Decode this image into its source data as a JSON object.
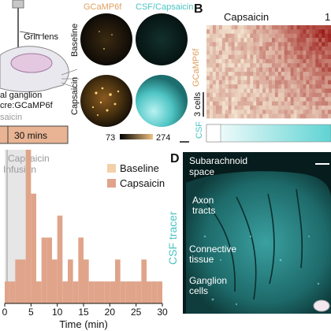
{
  "panels": {
    "A": {
      "letter": "",
      "implant_label": "Grin lens",
      "ganglion_label": "al ganglion",
      "cre_label": "cre:GCaMP6f",
      "timeline_label": "saicin",
      "duration_label": "30 mins",
      "column_gcamp": "GCaMP6f",
      "column_csf": "CSF/Capsaicin",
      "row_baseline": "Baseline",
      "row_capsaicin": "Capsaicin",
      "scale_min": "73",
      "scale_max": "274"
    },
    "B": {
      "letter": "B",
      "title": "Capsaicin",
      "top_right_digit": "1",
      "ylabel": "GCaMP6f",
      "cells_scale": "3 cells",
      "csf_label": "CSF"
    },
    "D": {
      "letter": "D",
      "side_label": "CSF tracer",
      "annotations": [
        "Subarachnoid space",
        "Axon tracts",
        "Connective tissue",
        "Ganglion cells"
      ]
    }
  },
  "colors": {
    "gcamp": "#e0a060",
    "csf": "#5fd3d3",
    "baseline": "#f2d0a8",
    "capsaicin": "#e0a48a",
    "heat_low": "#f3e3cf",
    "heat_high": "#9b1b16"
  },
  "chart_data": {
    "type": "bar",
    "infusion_label_line1": "Capsaicin",
    "infusion_label_line2": "Infusion",
    "infusion_window": [
      0,
      5
    ],
    "xlabel": "Time (min)",
    "xlim": [
      0,
      30
    ],
    "ylim": [
      0,
      7
    ],
    "x_ticks": [
      0,
      5,
      10,
      15,
      20,
      25,
      30
    ],
    "legend": [
      "Baseline",
      "Capsaicin"
    ],
    "bin_width": 1,
    "series": [
      {
        "name": "Capsaicin",
        "x": [
          0,
          1,
          2,
          3,
          4,
          5,
          6,
          7,
          8,
          9,
          10,
          11,
          12,
          13,
          14,
          15,
          16,
          17,
          18,
          19,
          20,
          21,
          22,
          23,
          24,
          25,
          26,
          27,
          28,
          29
        ],
        "values": [
          1,
          1,
          2,
          2,
          7,
          5,
          1,
          3,
          3,
          2,
          4,
          1,
          2,
          1,
          3,
          2,
          1,
          1,
          1,
          1,
          1,
          2,
          1,
          1,
          1,
          1,
          2,
          1,
          1,
          1
        ]
      }
    ]
  }
}
